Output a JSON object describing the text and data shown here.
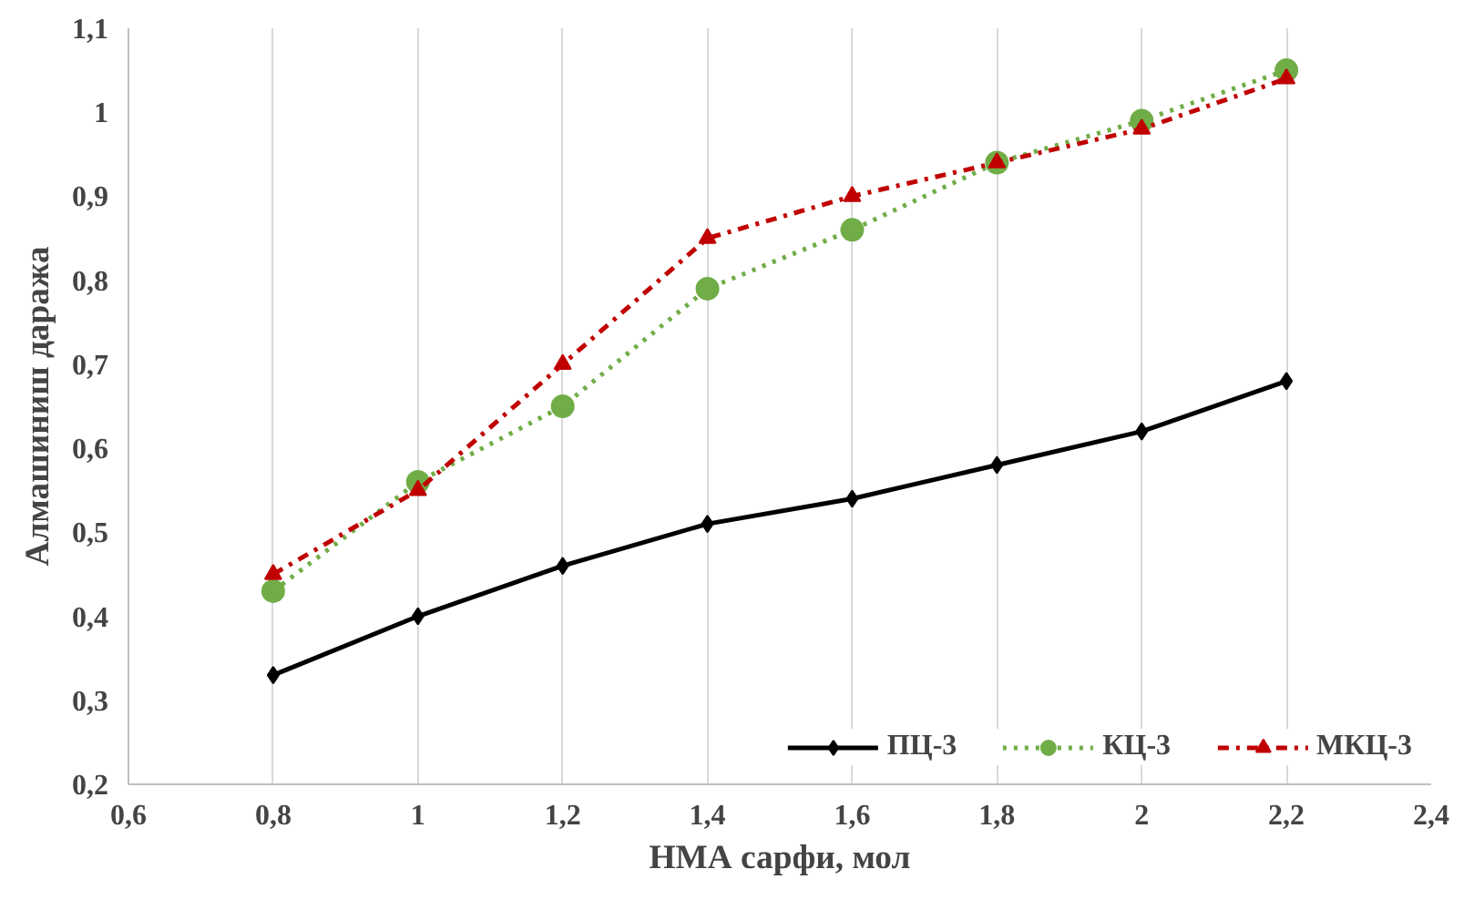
{
  "chart_data": {
    "type": "line",
    "xlabel": "НМА сарфи, мол",
    "ylabel": "Алмашиниш даража",
    "x": [
      0.8,
      1.0,
      1.2,
      1.4,
      1.6,
      1.8,
      2.0,
      2.2
    ],
    "series": [
      {
        "name": "ПЦ-3",
        "color": "#000000",
        "marker": "diamond",
        "line_style": "solid",
        "values": [
          0.33,
          0.4,
          0.46,
          0.51,
          0.54,
          0.58,
          0.62,
          0.68
        ]
      },
      {
        "name": "КЦ-3",
        "color": "#70ad47",
        "marker": "circle",
        "line_style": "dotted",
        "values": [
          0.43,
          0.56,
          0.65,
          0.79,
          0.86,
          0.94,
          0.99,
          1.05
        ]
      },
      {
        "name": "МКЦ-3",
        "color": "#c00000",
        "marker": "triangle",
        "line_style": "dashdot",
        "values": [
          0.45,
          0.55,
          0.7,
          0.85,
          0.9,
          0.94,
          0.98,
          1.04
        ]
      }
    ],
    "xlim": [
      0.6,
      2.4
    ],
    "xticks": [
      {
        "value": 0.6,
        "label": "0,6"
      },
      {
        "value": 0.8,
        "label": "0,8"
      },
      1,
      {
        "value": 1.2,
        "label": "1,2"
      },
      {
        "value": 1.4,
        "label": "1,4"
      },
      {
        "value": 1.6,
        "label": "1,6"
      },
      {
        "value": 1.8,
        "label": "1,8"
      },
      2,
      {
        "value": 2.2,
        "label": "2,2"
      },
      {
        "value": 2.4,
        "label": "2,4"
      }
    ],
    "ylim": [
      0.2,
      1.1
    ],
    "yticks": [
      {
        "value": 0.2,
        "label": "0,2"
      },
      {
        "value": 0.3,
        "label": "0,3"
      },
      {
        "value": 0.4,
        "label": "0,4"
      },
      {
        "value": 0.5,
        "label": "0,5"
      },
      {
        "value": 0.6,
        "label": "0,6"
      },
      {
        "value": 0.7,
        "label": "0,7"
      },
      {
        "value": 0.8,
        "label": "0,8"
      },
      {
        "value": 0.9,
        "label": "0,9"
      },
      1,
      {
        "value": 1.1,
        "label": "1,1"
      }
    ],
    "grid": "x",
    "legend": "bottom right"
  }
}
